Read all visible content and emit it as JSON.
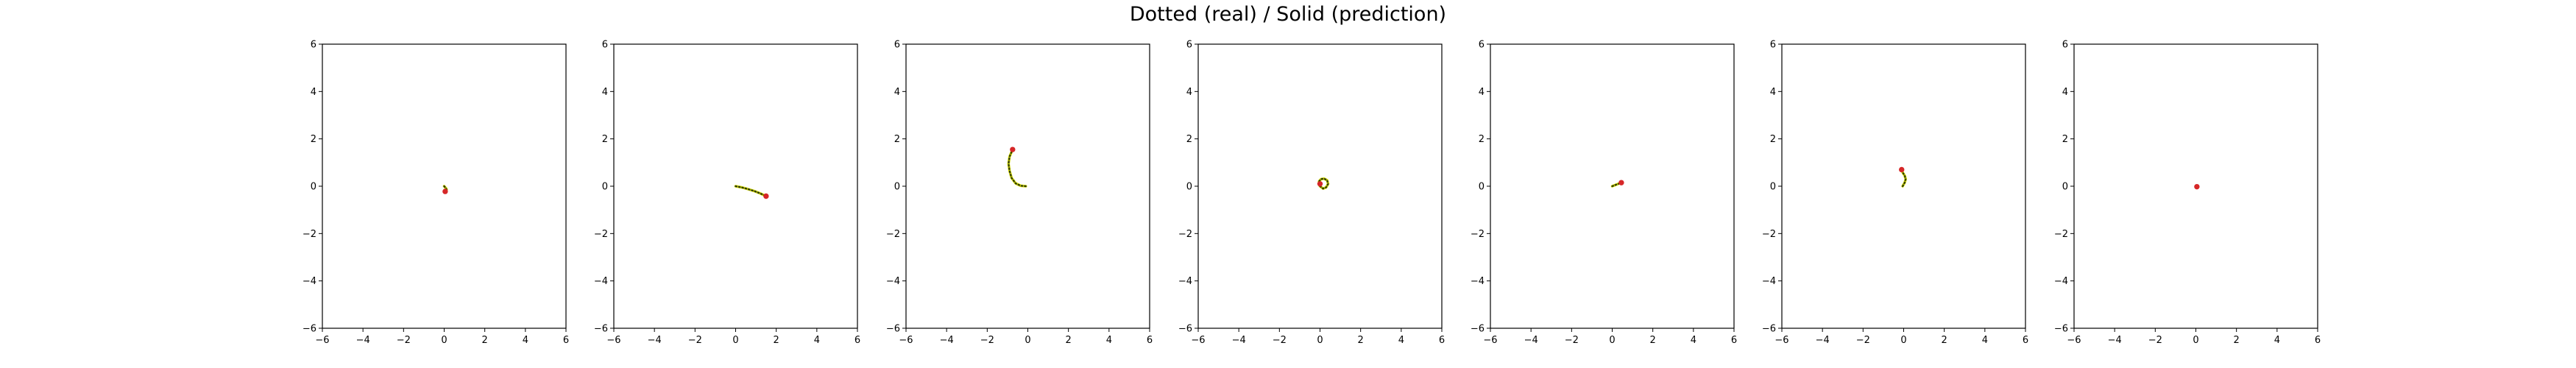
{
  "figure": {
    "title": "Dotted (real) / Solid (prediction)"
  },
  "colors": {
    "real": "#2e3a0a",
    "prediction": "#cfd400",
    "endpoint": "#d62728",
    "axis": "#000000"
  },
  "chart_data": [
    {
      "type": "line",
      "xlim": [
        -6,
        6
      ],
      "ylim": [
        -6,
        6
      ],
      "xticks": [
        -6,
        -4,
        -2,
        0,
        2,
        4,
        6
      ],
      "yticks": [
        -6,
        -4,
        -2,
        0,
        2,
        4,
        6
      ],
      "series": [
        {
          "name": "real",
          "x": [
            0.0,
            0.05,
            0.1,
            0.12,
            0.1,
            0.05
          ],
          "y": [
            0.0,
            -0.05,
            -0.1,
            -0.15,
            -0.2,
            -0.22
          ]
        },
        {
          "name": "prediction",
          "x": [
            0.0,
            0.05,
            0.1,
            0.12,
            0.1,
            0.05
          ],
          "y": [
            0.0,
            -0.05,
            -0.1,
            -0.15,
            -0.2,
            -0.22
          ]
        }
      ],
      "endpoint": {
        "x": 0.05,
        "y": -0.22
      }
    },
    {
      "type": "line",
      "xlim": [
        -6,
        6
      ],
      "ylim": [
        -6,
        6
      ],
      "xticks": [
        -6,
        -4,
        -2,
        0,
        2,
        4,
        6
      ],
      "yticks": [
        -6,
        -4,
        -2,
        0,
        2,
        4,
        6
      ],
      "series": [
        {
          "name": "real",
          "x": [
            0.0,
            0.3,
            0.6,
            0.9,
            1.2,
            1.5
          ],
          "y": [
            0.0,
            -0.05,
            -0.12,
            -0.2,
            -0.3,
            -0.42
          ]
        },
        {
          "name": "prediction",
          "x": [
            0.0,
            0.3,
            0.6,
            0.9,
            1.2,
            1.5
          ],
          "y": [
            0.0,
            -0.05,
            -0.12,
            -0.2,
            -0.3,
            -0.42
          ]
        }
      ],
      "endpoint": {
        "x": 1.5,
        "y": -0.42
      }
    },
    {
      "type": "line",
      "xlim": [
        -6,
        6
      ],
      "ylim": [
        -6,
        6
      ],
      "xticks": [
        -6,
        -4,
        -2,
        0,
        2,
        4,
        6
      ],
      "yticks": [
        -6,
        -4,
        -2,
        0,
        2,
        4,
        6
      ],
      "series": [
        {
          "name": "real",
          "x": [
            -0.1,
            -0.35,
            -0.6,
            -0.8,
            -0.9,
            -0.95,
            -0.9,
            -0.75
          ],
          "y": [
            0.0,
            0.02,
            0.12,
            0.35,
            0.65,
            0.95,
            1.25,
            1.55
          ]
        },
        {
          "name": "prediction",
          "x": [
            -0.1,
            -0.35,
            -0.6,
            -0.8,
            -0.9,
            -0.95,
            -0.9,
            -0.75
          ],
          "y": [
            0.0,
            0.02,
            0.12,
            0.35,
            0.65,
            0.95,
            1.25,
            1.55
          ]
        }
      ],
      "endpoint": {
        "x": -0.75,
        "y": 1.55
      }
    },
    {
      "type": "line",
      "xlim": [
        -6,
        6
      ],
      "ylim": [
        -6,
        6
      ],
      "xticks": [
        -6,
        -4,
        -2,
        0,
        2,
        4,
        6
      ],
      "yticks": [
        -6,
        -4,
        -2,
        0,
        2,
        4,
        6
      ],
      "series": [
        {
          "name": "real",
          "x": [
            0.0,
            0.15,
            0.3,
            0.4,
            0.35,
            0.2,
            0.05,
            -0.05,
            0.0
          ],
          "y": [
            0.0,
            -0.1,
            -0.05,
            0.1,
            0.25,
            0.32,
            0.3,
            0.2,
            0.1
          ]
        },
        {
          "name": "prediction",
          "x": [
            0.0,
            0.15,
            0.3,
            0.4,
            0.35,
            0.2,
            0.05,
            -0.05,
            0.0
          ],
          "y": [
            0.0,
            -0.1,
            -0.05,
            0.1,
            0.25,
            0.32,
            0.3,
            0.2,
            0.1
          ]
        }
      ],
      "endpoint": {
        "x": 0.0,
        "y": 0.1
      }
    },
    {
      "type": "line",
      "xlim": [
        -6,
        6
      ],
      "ylim": [
        -6,
        6
      ],
      "xticks": [
        -6,
        -4,
        -2,
        0,
        2,
        4,
        6
      ],
      "yticks": [
        -6,
        -4,
        -2,
        0,
        2,
        4,
        6
      ],
      "series": [
        {
          "name": "real",
          "x": [
            0.0,
            0.15,
            0.3,
            0.45
          ],
          "y": [
            0.0,
            0.05,
            0.1,
            0.15
          ]
        },
        {
          "name": "prediction",
          "x": [
            0.0,
            0.15,
            0.3,
            0.45
          ],
          "y": [
            0.0,
            0.05,
            0.1,
            0.15
          ]
        }
      ],
      "endpoint": {
        "x": 0.45,
        "y": 0.15
      }
    },
    {
      "type": "line",
      "xlim": [
        -6,
        6
      ],
      "ylim": [
        -6,
        6
      ],
      "xticks": [
        -6,
        -4,
        -2,
        0,
        2,
        4,
        6
      ],
      "yticks": [
        -6,
        -4,
        -2,
        0,
        2,
        4,
        6
      ],
      "series": [
        {
          "name": "real",
          "x": [
            -0.05,
            0.05,
            0.1,
            0.05,
            -0.05,
            -0.1
          ],
          "y": [
            0.0,
            0.15,
            0.3,
            0.45,
            0.58,
            0.7
          ]
        },
        {
          "name": "prediction",
          "x": [
            -0.05,
            0.05,
            0.1,
            0.05,
            -0.05,
            -0.1
          ],
          "y": [
            0.0,
            0.15,
            0.3,
            0.45,
            0.58,
            0.7
          ]
        }
      ],
      "endpoint": {
        "x": -0.1,
        "y": 0.7
      }
    },
    {
      "type": "line",
      "xlim": [
        -6,
        6
      ],
      "ylim": [
        -6,
        6
      ],
      "xticks": [
        -6,
        -4,
        -2,
        0,
        2,
        4,
        6
      ],
      "yticks": [
        -6,
        -4,
        -2,
        0,
        2,
        4,
        6
      ],
      "series": [
        {
          "name": "real",
          "x": [
            0.0,
            0.05
          ],
          "y": [
            0.0,
            -0.02
          ]
        },
        {
          "name": "prediction",
          "x": [
            0.0,
            0.05
          ],
          "y": [
            0.0,
            -0.02
          ]
        }
      ],
      "endpoint": {
        "x": 0.05,
        "y": -0.02
      }
    }
  ]
}
